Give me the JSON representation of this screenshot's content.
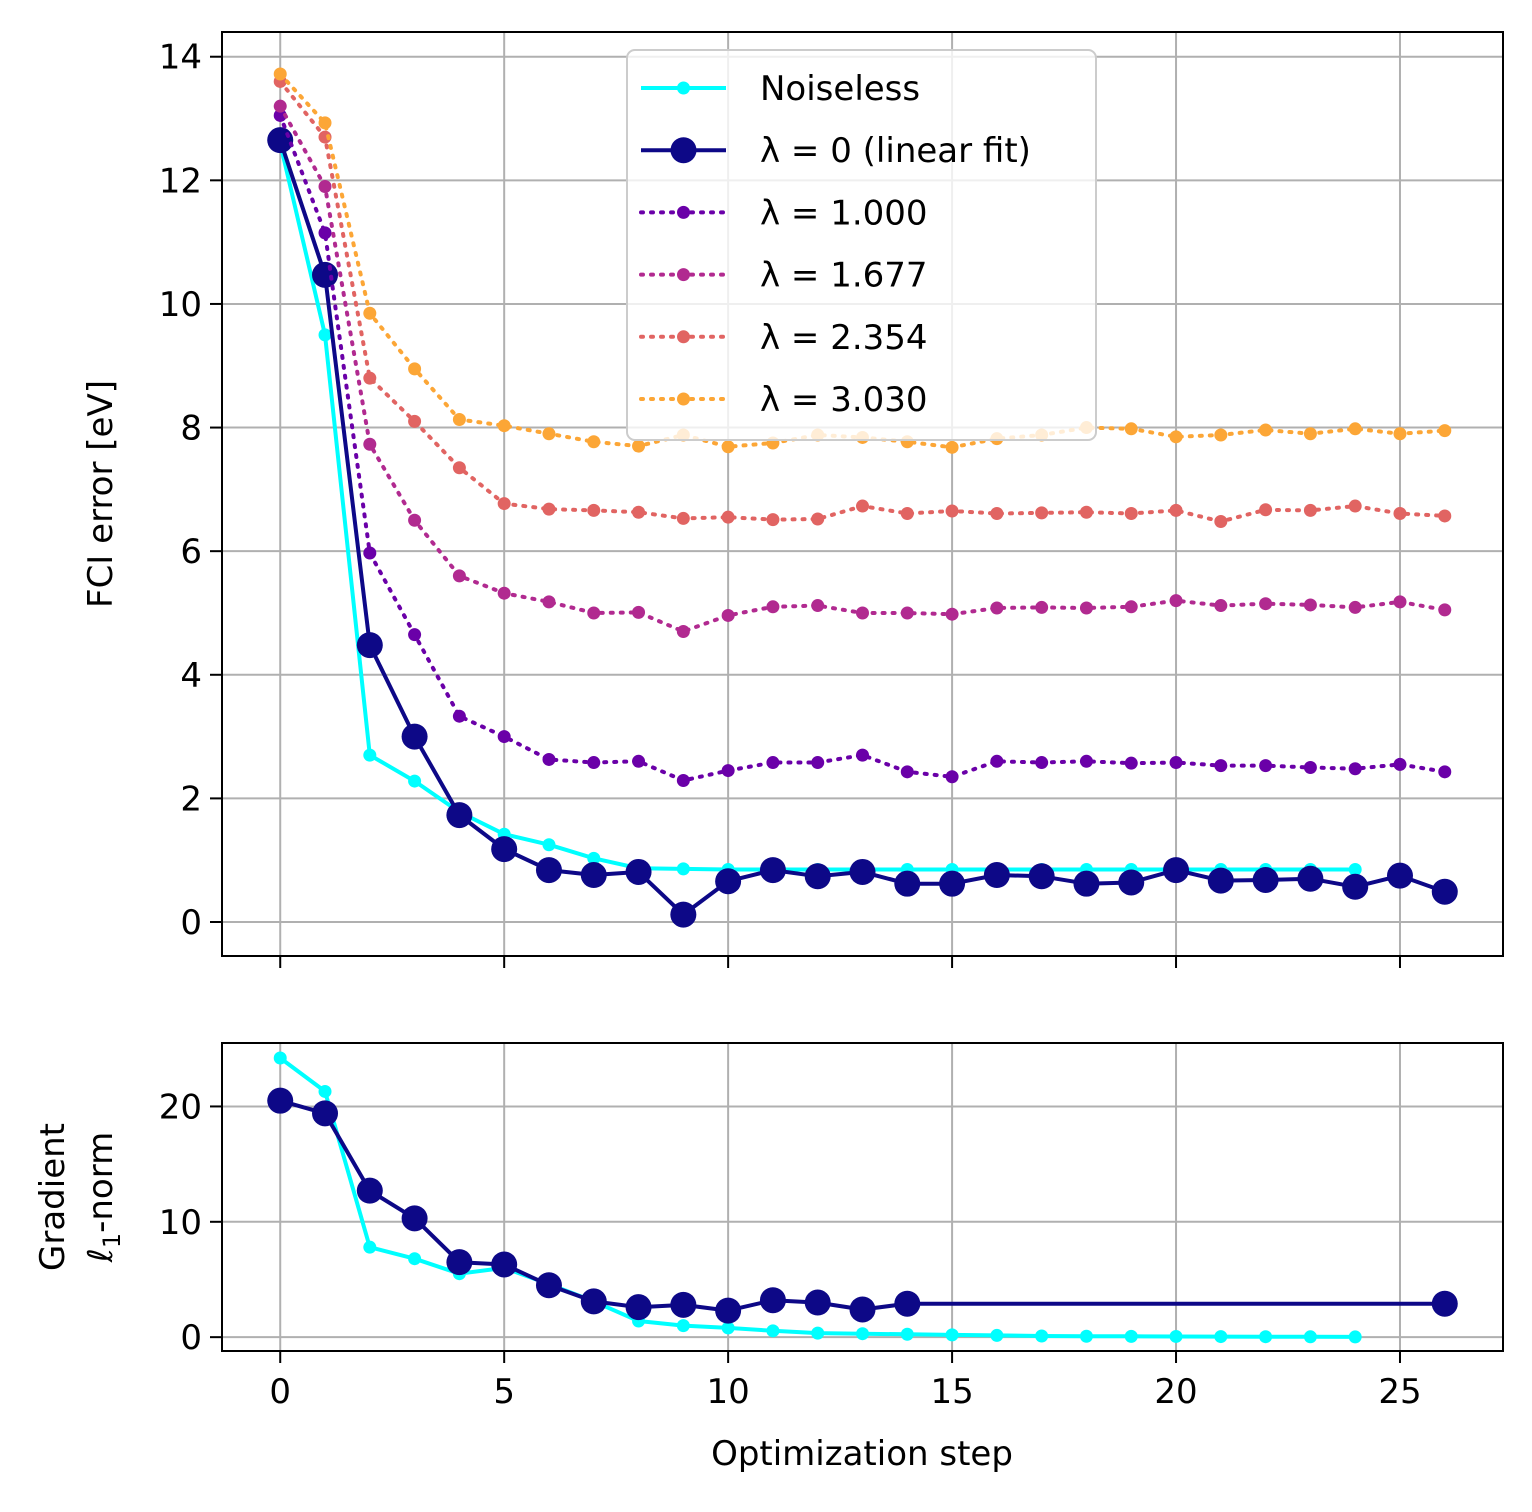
{
  "chart_data": [
    {
      "type": "line",
      "ylabel": "FCI error [eV]",
      "xlim": [
        -1.3,
        27.3
      ],
      "ylim": [
        -0.55,
        14.4
      ],
      "xticks": [
        "0",
        "5",
        "10",
        "15",
        "20",
        "25"
      ],
      "xtick_values": [
        0,
        5,
        10,
        15,
        20,
        25
      ],
      "yticks": [
        "0",
        "2",
        "4",
        "6",
        "8",
        "10",
        "12",
        "14"
      ],
      "ytick_values": [
        0,
        2,
        4,
        6,
        8,
        10,
        12,
        14
      ],
      "grid": true,
      "legend_position": "top-center",
      "series": [
        {
          "name": "Noiseless",
          "color": "#00ffff",
          "style": "solid-small-markers",
          "x": [
            0,
            1,
            2,
            3,
            4,
            5,
            6,
            7,
            8,
            9,
            10,
            11,
            12,
            13,
            14,
            15,
            16,
            17,
            18,
            19,
            20,
            21,
            22,
            23,
            24
          ],
          "values": [
            12.6,
            9.5,
            2.7,
            2.28,
            1.78,
            1.42,
            1.25,
            1.03,
            0.87,
            0.86,
            0.85,
            0.85,
            0.85,
            0.85,
            0.85,
            0.85,
            0.85,
            0.85,
            0.85,
            0.85,
            0.85,
            0.85,
            0.85,
            0.85,
            0.85
          ]
        },
        {
          "name": "λ = 0 (linear fit)",
          "color": "#0d0887",
          "style": "solid-large-markers",
          "x": [
            0,
            1,
            2,
            3,
            4,
            5,
            6,
            7,
            8,
            9,
            10,
            11,
            12,
            13,
            14,
            15,
            16,
            17,
            18,
            19,
            20,
            21,
            22,
            23,
            24,
            25,
            26
          ],
          "values": [
            12.65,
            10.47,
            4.48,
            3.0,
            1.73,
            1.18,
            0.84,
            0.76,
            0.81,
            0.12,
            0.66,
            0.84,
            0.74,
            0.81,
            0.62,
            0.62,
            0.76,
            0.74,
            0.62,
            0.64,
            0.84,
            0.67,
            0.68,
            0.7,
            0.57,
            0.75,
            0.49
          ]
        },
        {
          "name": "λ = 1.000",
          "color": "#6a00a8",
          "style": "dotted-small-markers",
          "x": [
            0,
            1,
            2,
            3,
            4,
            5,
            6,
            7,
            8,
            9,
            10,
            11,
            12,
            13,
            14,
            15,
            16,
            17,
            18,
            19,
            20,
            21,
            22,
            23,
            24,
            25,
            26
          ],
          "values": [
            13.05,
            11.15,
            5.97,
            4.65,
            3.33,
            3.0,
            2.63,
            2.58,
            2.6,
            2.29,
            2.45,
            2.58,
            2.58,
            2.7,
            2.43,
            2.35,
            2.6,
            2.58,
            2.6,
            2.57,
            2.58,
            2.53,
            2.53,
            2.5,
            2.48,
            2.55,
            2.43
          ]
        },
        {
          "name": "λ = 1.677",
          "color": "#b12a90",
          "style": "dotted-small-markers",
          "x": [
            0,
            1,
            2,
            3,
            4,
            5,
            6,
            7,
            8,
            9,
            10,
            11,
            12,
            13,
            14,
            15,
            16,
            17,
            18,
            19,
            20,
            21,
            22,
            23,
            24,
            25,
            26
          ],
          "values": [
            13.2,
            11.9,
            7.73,
            6.5,
            5.6,
            5.32,
            5.18,
            5.0,
            5.01,
            4.7,
            4.96,
            5.1,
            5.12,
            5.0,
            5.0,
            4.98,
            5.08,
            5.09,
            5.08,
            5.1,
            5.2,
            5.12,
            5.15,
            5.13,
            5.09,
            5.18,
            5.05
          ]
        },
        {
          "name": "λ = 2.354",
          "color": "#e16462",
          "style": "dotted-small-markers",
          "x": [
            0,
            1,
            2,
            3,
            4,
            5,
            6,
            7,
            8,
            9,
            10,
            11,
            12,
            13,
            14,
            15,
            16,
            17,
            18,
            19,
            20,
            21,
            22,
            23,
            24,
            25,
            26
          ],
          "values": [
            13.6,
            12.7,
            8.8,
            8.1,
            7.35,
            6.77,
            6.68,
            6.66,
            6.63,
            6.53,
            6.55,
            6.51,
            6.52,
            6.73,
            6.61,
            6.65,
            6.61,
            6.62,
            6.63,
            6.61,
            6.66,
            6.48,
            6.67,
            6.66,
            6.73,
            6.61,
            6.57
          ]
        },
        {
          "name": "λ = 3.030",
          "color": "#fca636",
          "style": "dotted-small-markers",
          "x": [
            0,
            1,
            2,
            3,
            4,
            5,
            6,
            7,
            8,
            9,
            10,
            11,
            12,
            13,
            14,
            15,
            16,
            17,
            18,
            19,
            20,
            21,
            22,
            23,
            24,
            25,
            26
          ],
          "values": [
            13.72,
            12.93,
            9.85,
            8.95,
            8.13,
            8.03,
            7.9,
            7.77,
            7.7,
            7.88,
            7.69,
            7.75,
            7.88,
            7.84,
            7.77,
            7.68,
            7.82,
            7.88,
            8.0,
            7.98,
            7.85,
            7.88,
            7.96,
            7.9,
            7.98,
            7.9,
            7.95
          ]
        }
      ]
    },
    {
      "type": "line",
      "ylabel": [
        "Gradient",
        "ℓ",
        "1",
        "-norm"
      ],
      "xlabel": "Optimization step",
      "xlim": [
        -1.3,
        27.3
      ],
      "ylim": [
        -1.2,
        25.5
      ],
      "xticks": [
        "0",
        "5",
        "10",
        "15",
        "20",
        "25"
      ],
      "xtick_values": [
        0,
        5,
        10,
        15,
        20,
        25
      ],
      "yticks": [
        "0",
        "10",
        "20"
      ],
      "ytick_values": [
        0,
        10,
        20
      ],
      "grid": true,
      "series": [
        {
          "name": "Noiseless",
          "color": "#00ffff",
          "style": "solid-small-markers",
          "x": [
            0,
            1,
            2,
            3,
            4,
            5,
            6,
            7,
            8,
            9,
            10,
            11,
            12,
            13,
            14,
            15,
            16,
            17,
            18,
            19,
            20,
            21,
            22,
            23,
            24
          ],
          "values": [
            24.2,
            21.3,
            7.8,
            6.8,
            5.5,
            6.0,
            4.6,
            3.1,
            1.4,
            1.0,
            0.8,
            0.55,
            0.35,
            0.3,
            0.25,
            0.2,
            0.15,
            0.1,
            0.08,
            0.07,
            0.06,
            0.05,
            0.04,
            0.03,
            0.02
          ]
        },
        {
          "name": "λ = 0 (linear fit)",
          "color": "#0d0887",
          "style": "solid-large-markers",
          "x": [
            0,
            1,
            2,
            3,
            4,
            5,
            6,
            7,
            8,
            9,
            10,
            11,
            12,
            13,
            14,
            26
          ],
          "values": [
            20.5,
            19.4,
            12.7,
            10.3,
            6.5,
            6.3,
            4.5,
            3.1,
            2.6,
            2.8,
            2.3,
            3.2,
            3.0,
            2.4,
            2.9,
            2.9
          ]
        }
      ]
    }
  ]
}
